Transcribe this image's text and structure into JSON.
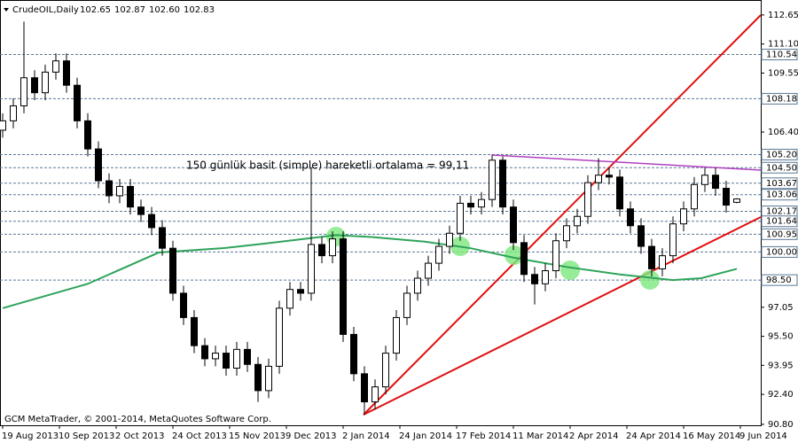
{
  "chart_data": {
    "type": "candlestick",
    "header": {
      "symbol": "CrudeOIL,Daily",
      "ohlc": [
        102.65,
        102.87,
        {
          "value": 102.6,
          "label": "102.60"
        },
        102.83
      ]
    },
    "annotation": "150 günlük basit (simple) hareketli ortalama = 99,11",
    "footer": "GCM MetaTrader, © 2001-2014, MetaQuotes Software Corp.",
    "up_color": "#ffffff",
    "down_color": "#000000",
    "x": [
      0,
      3,
      6,
      9,
      12,
      15,
      18,
      21,
      24,
      27,
      30,
      33,
      36,
      39,
      42,
      45,
      48,
      51,
      54,
      57,
      60,
      63,
      66,
      69,
      72,
      75,
      78,
      81,
      84,
      87,
      90,
      93,
      96,
      99,
      102,
      105,
      108,
      111,
      114,
      117,
      120,
      123,
      126,
      129,
      132,
      135,
      138,
      141,
      144,
      147,
      150,
      153,
      156,
      159,
      162,
      165,
      168,
      171,
      174,
      177,
      180,
      183,
      186,
      189,
      192,
      195,
      198,
      201,
      204,
      207
    ],
    "open": [
      106.5,
      107.0,
      107.8,
      109.3,
      108.5,
      109.6,
      110.2,
      108.9,
      107.0,
      105.5,
      103.8,
      103.0,
      103.5,
      102.4,
      102.0,
      101.3,
      100.2,
      97.8,
      96.5,
      95.0,
      94.3,
      94.6,
      93.8,
      94.8,
      94.0,
      92.6,
      93.9,
      97.0,
      98.0,
      97.8,
      100.4,
      99.8,
      100.7,
      95.6,
      93.5,
      92.0,
      92.8,
      94.6,
      96.5,
      97.8,
      98.6,
      99.4,
      100.3,
      101.0,
      102.6,
      102.4,
      102.8,
      104.9,
      102.4,
      100.5,
      98.8,
      98.3,
      99.0,
      100.6,
      101.4,
      101.9,
      103.7,
      104.1,
      104.0,
      102.3,
      101.4,
      100.3,
      99.1,
      99.8,
      101.5,
      102.3,
      103.6,
      104.1,
      103.4,
      102.65
    ],
    "high": [
      107.4,
      108.2,
      112.3,
      109.7,
      110.0,
      110.6,
      110.6,
      109.3,
      107.4,
      105.9,
      104.2,
      103.9,
      103.9,
      102.8,
      102.4,
      101.7,
      100.6,
      98.2,
      96.9,
      95.4,
      95.0,
      95.0,
      95.2,
      95.2,
      94.4,
      94.3,
      97.4,
      98.4,
      98.4,
      104.5,
      100.8,
      101.1,
      101.1,
      96.0,
      93.9,
      93.2,
      95.0,
      96.9,
      98.2,
      99.0,
      99.8,
      100.7,
      101.4,
      103.0,
      103.0,
      103.2,
      105.2,
      105.1,
      102.8,
      100.9,
      99.2,
      99.4,
      101.0,
      101.8,
      102.3,
      104.1,
      105.0,
      104.5,
      104.4,
      102.7,
      101.8,
      100.7,
      100.2,
      101.9,
      102.7,
      104.0,
      104.5,
      104.5,
      103.8,
      102.87
    ],
    "low": [
      106.1,
      106.6,
      107.4,
      108.1,
      108.1,
      109.2,
      108.5,
      106.6,
      105.1,
      103.4,
      102.6,
      102.6,
      102.0,
      101.6,
      100.9,
      99.8,
      97.4,
      96.1,
      94.6,
      93.9,
      93.9,
      93.4,
      93.4,
      93.6,
      92.0,
      92.2,
      93.5,
      96.6,
      97.4,
      97.4,
      99.4,
      99.4,
      95.2,
      93.1,
      91.3,
      91.6,
      92.4,
      94.2,
      96.1,
      97.4,
      98.2,
      99.0,
      99.9,
      100.6,
      102.0,
      102.0,
      102.4,
      102.0,
      100.1,
      98.4,
      97.2,
      97.9,
      98.6,
      100.2,
      101.0,
      101.5,
      103.3,
      103.6,
      101.9,
      101.0,
      99.9,
      98.7,
      98.7,
      99.4,
      101.1,
      101.9,
      103.2,
      103.0,
      102.1,
      102.6
    ],
    "close": [
      107.0,
      107.8,
      109.3,
      108.5,
      109.6,
      110.2,
      108.9,
      107.0,
      105.5,
      103.8,
      103.0,
      103.5,
      102.4,
      102.0,
      101.3,
      100.2,
      97.8,
      96.5,
      95.0,
      94.3,
      94.6,
      93.8,
      94.8,
      94.0,
      92.6,
      93.9,
      97.0,
      98.0,
      97.8,
      100.4,
      99.8,
      100.7,
      95.6,
      93.5,
      92.0,
      92.8,
      94.6,
      96.5,
      97.8,
      98.6,
      99.4,
      100.3,
      101.0,
      102.6,
      102.4,
      102.8,
      104.9,
      102.4,
      100.5,
      98.8,
      98.3,
      99.0,
      100.6,
      101.4,
      101.9,
      103.7,
      104.1,
      104.0,
      102.3,
      101.4,
      100.3,
      99.1,
      99.8,
      101.5,
      102.3,
      103.6,
      104.1,
      103.4,
      102.5,
      102.83
    ],
    "moving_average": {
      "color": "#2ea35a",
      "x": [
        0,
        24,
        44,
        62,
        74,
        94,
        104,
        119,
        132,
        144,
        159,
        174,
        189,
        197,
        207
      ],
      "values": [
        97.0,
        98.3,
        99.97,
        100.2,
        100.45,
        100.9,
        100.8,
        100.55,
        100.2,
        99.7,
        99.2,
        98.8,
        98.5,
        98.6,
        99.1
      ]
    },
    "levels_color": "#5a7896",
    "levels": [
      110.54,
      108.18,
      {
        "value": 105.2,
        "label": "105.20"
      },
      {
        "value": 104.5,
        "label": "104.50"
      },
      103.67,
      103.06,
      102.17,
      101.64,
      100.95,
      {
        "value": 100,
        "label": "100.00"
      },
      {
        "value": 98.5,
        "label": "98.50"
      }
    ],
    "ylim": [
      90.75,
      113.45
    ],
    "yticks": [
      112.65,
      {
        "value": 111.1,
        "label": "111.10"
      },
      109.55,
      {
        "value": 106.4,
        "label": "106.40"
      },
      97.05,
      {
        "value": 95.5,
        "label": "95.50"
      },
      93.95,
      {
        "value": 92.4,
        "label": "92.40"
      },
      {
        "value": 90.8,
        "label": "90.80"
      }
    ],
    "xlim": [
      -0.75,
      213.75
    ],
    "xticks": [
      {
        "value": 0,
        "label": "19 Aug 2013"
      },
      {
        "value": 16,
        "label": "10 Sep 2013"
      },
      {
        "value": 32,
        "label": "2 Oct 2013"
      },
      {
        "value": 48,
        "label": "24 Oct 2013"
      },
      {
        "value": 64,
        "label": "15 Nov 2013"
      },
      {
        "value": 80,
        "label": "9 Dec 2013"
      },
      {
        "value": 96,
        "label": "2 Jan 2014"
      },
      {
        "value": 112,
        "label": "24 Jan 2014"
      },
      {
        "value": 128,
        "label": "17 Feb 2014"
      },
      {
        "value": 144,
        "label": "11 Mar 2014"
      },
      {
        "value": 160,
        "label": "2 Apr 2014"
      },
      {
        "value": 176,
        "label": "24 Apr 2014"
      },
      {
        "value": 192,
        "label": "16 May 2014"
      },
      {
        "value": 208,
        "label": "9 Jun 2014"
      }
    ]
  }
}
